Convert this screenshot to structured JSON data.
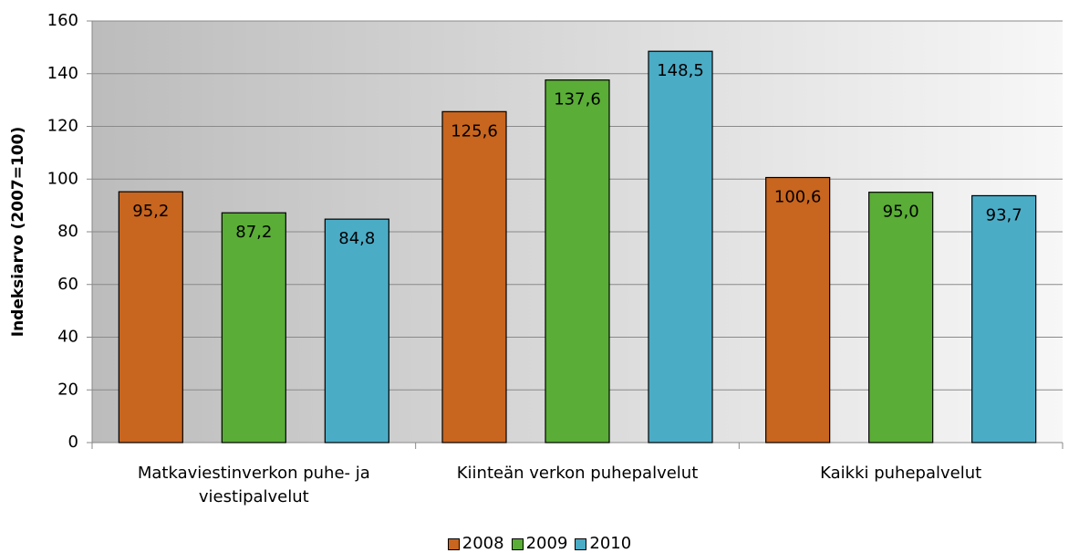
{
  "chart_data": {
    "type": "bar",
    "y_label": "Indeksiarvo (2007=100)",
    "categories": [
      "Matkaviestinverkon puhe- ja viestipalvelut",
      "Kiinteän verkon puhepalvelut",
      "Kaikki puhepalvelut"
    ],
    "series": [
      {
        "name": "2008",
        "color": "#c8651e",
        "values": [
          95.2,
          125.6,
          100.6
        ],
        "value_labels": [
          "95,2",
          "125,6",
          "100,6"
        ]
      },
      {
        "name": "2009",
        "color": "#5aad36",
        "values": [
          87.2,
          137.6,
          95.0
        ],
        "value_labels": [
          "87,2",
          "137,6",
          "95,0"
        ]
      },
      {
        "name": "2010",
        "color": "#4bacc6",
        "values": [
          84.8,
          148.5,
          93.7
        ],
        "value_labels": [
          "84,8",
          "148,5",
          "93,7"
        ]
      }
    ],
    "ylim": [
      0,
      160
    ],
    "yticks": [
      0,
      20,
      40,
      60,
      80,
      100,
      120,
      140,
      160
    ],
    "grid": true,
    "legend": "bottom"
  }
}
